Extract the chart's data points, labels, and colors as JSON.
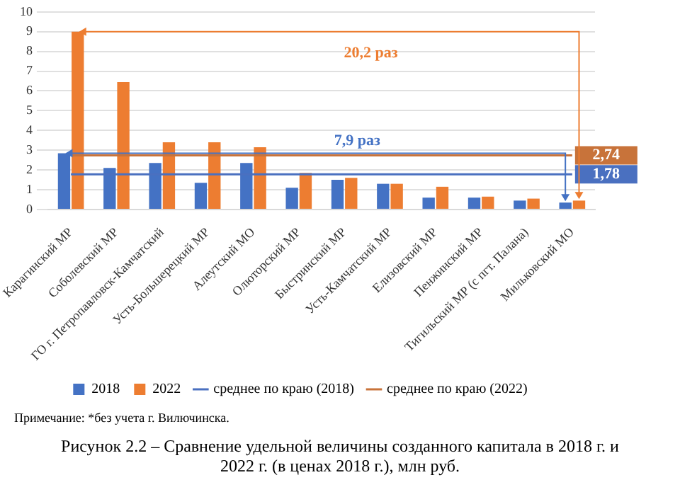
{
  "chart_data": {
    "type": "bar",
    "title": "Рисунок 2.2 – Сравнение удельной величины созданного капитала в 2018 г. и 2022 г. (в ценах 2018 г.), млн руб.",
    "categories": [
      "Карагинский МР",
      "Соболевский МР",
      "ГО г. Петропавловск-Камчатский",
      "Усть-Большерецкий МР",
      "Алеутский МО",
      "Олюторский МР",
      "Быстринский МР",
      "Усть-Камчатский МР",
      "Елизовский МР",
      "Пенжинский МР",
      "Тигильский МР (с пгт. Палана)",
      "Мильковский МО"
    ],
    "series": [
      {
        "name": "2018",
        "color": "#4472c4",
        "values": [
          2.85,
          2.1,
          2.35,
          1.35,
          2.35,
          1.1,
          1.5,
          1.3,
          0.6,
          0.6,
          0.45,
          0.35
        ]
      },
      {
        "name": "2022",
        "color": "#ed7d31",
        "values": [
          9.0,
          6.45,
          3.4,
          3.4,
          3.15,
          1.85,
          1.6,
          1.3,
          1.15,
          0.65,
          0.55,
          0.45
        ]
      },
      {
        "name": "среднее по краю (2018)",
        "type": "line",
        "color": "#4a70c0",
        "values": [
          1.78,
          1.78,
          1.78,
          1.78,
          1.78,
          1.78,
          1.78,
          1.78,
          1.78,
          1.78,
          1.78,
          1.78
        ],
        "value_labels": [
          null,
          null,
          null,
          null,
          null,
          null,
          null,
          null,
          null,
          null,
          null,
          "1,78"
        ]
      },
      {
        "name": "среднее по краю (2022)",
        "type": "line",
        "color": "#c8733a",
        "values": [
          2.74,
          2.74,
          2.74,
          2.74,
          2.74,
          2.74,
          2.74,
          2.74,
          2.74,
          2.74,
          2.74,
          2.74
        ],
        "value_labels": [
          null,
          null,
          null,
          null,
          null,
          null,
          null,
          null,
          null,
          null,
          null,
          "2,74"
        ]
      }
    ],
    "ylim": [
      0,
      10
    ],
    "yticks": [
      0,
      1,
      2,
      3,
      4,
      5,
      6,
      7,
      8,
      9,
      10
    ],
    "grid": "y",
    "legend": "bottom",
    "marker": "none",
    "annotations": [
      "20,2 раз",
      "7,9 раз",
      "Примечание: *без учета г. Вилючинска."
    ]
  }
}
